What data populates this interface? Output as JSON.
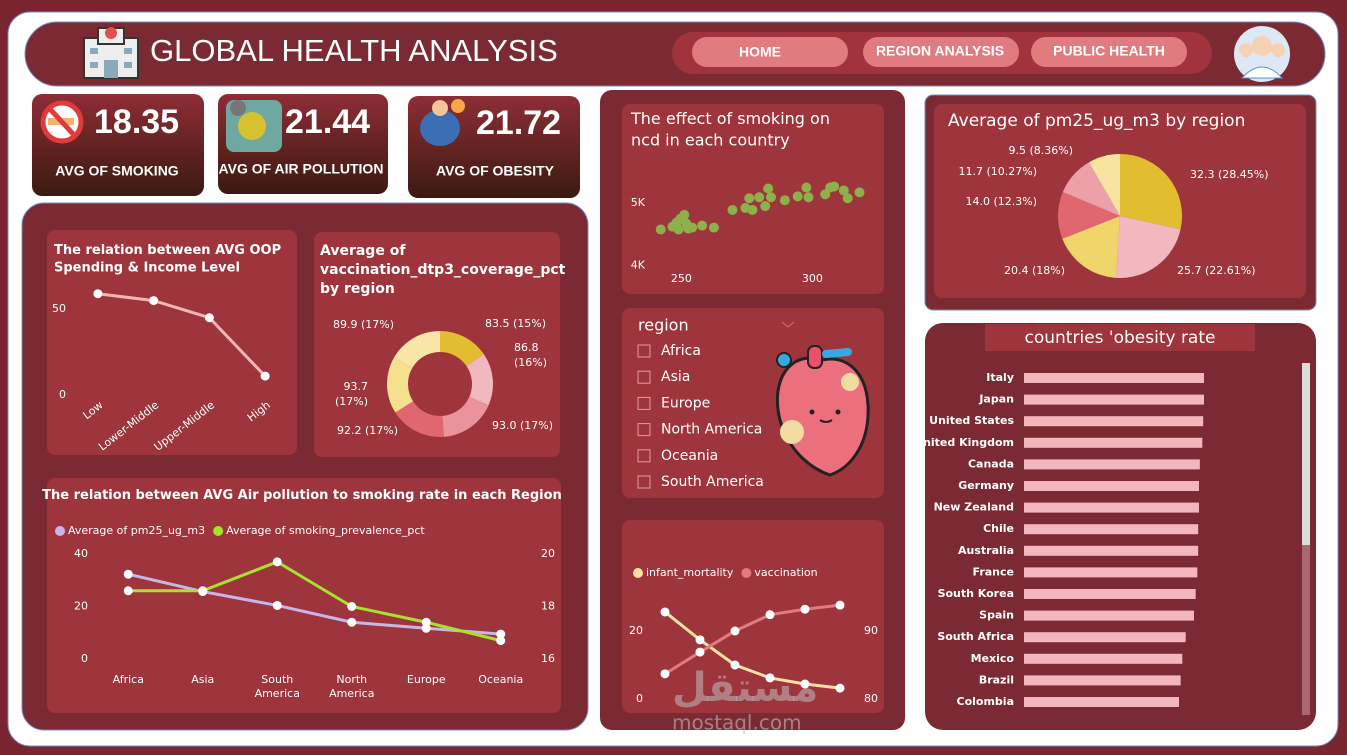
{
  "header": {
    "title": "GLOBAL HEALTH ANALYSIS",
    "nav": [
      "HOME",
      "REGION ANALYSIS",
      "PUBLIC HEALTH"
    ]
  },
  "kpis": [
    {
      "value": 18.35,
      "label": "AVG OF SMOKING"
    },
    {
      "value": 21.44,
      "label": "AVG OF AIR POLLUTION"
    },
    {
      "value": 21.72,
      "label": "AVG OF OBESITY"
    }
  ],
  "slicer": {
    "title": "region",
    "options": [
      "Africa",
      "Asia",
      "Europe",
      "North America",
      "Oceania",
      "South America"
    ]
  },
  "watermark": {
    "arabic": "مستقل",
    "latin": "mostaql.com"
  },
  "chart_data": [
    {
      "type": "line",
      "title": "The relation between AVG OOP Spending & Income Level",
      "categories": [
        "Low",
        "Lower-Middle",
        "Upper-Middle",
        "High"
      ],
      "series": [
        {
          "color": "#f4b6b6",
          "values": [
            59,
            55,
            45,
            11
          ]
        }
      ],
      "ylim": [
        0,
        60
      ],
      "yticks": [
        0,
        50
      ]
    },
    {
      "type": "donut",
      "title": "Average of vaccination_dtp3_coverage_pct by region",
      "values": [
        83.5,
        86.8,
        93.0,
        92.2,
        93.7,
        89.9
      ],
      "value_labels": [
        "83.5 (15%)",
        "86.8 (16%)",
        "93.0 (17%)",
        "92.2 (17%)",
        "93.7 (17%)",
        "89.9 (17%)"
      ],
      "colors": [
        "#e2bd30",
        "#f2b8bf",
        "#ea939b",
        "#e06670",
        "#f5e08e",
        "#f8e6a6"
      ]
    },
    {
      "type": "line",
      "title": "The relation between AVG Air pollution to smoking rate in each Region",
      "categories": [
        "Africa",
        "Asia",
        "South America",
        "North America",
        "Europe",
        "Oceania"
      ],
      "series": [
        {
          "name": "Average of pm25_ug_m3",
          "color": "#c9b6e8",
          "values": [
            32.3,
            25.7,
            20.4,
            14.0,
            11.7,
            9.5
          ]
        },
        {
          "name": "Average of smoking_prevalence_pct",
          "color": "#a6e22e",
          "axis": "y2",
          "values": [
            18.6,
            18.6,
            19.7,
            18.0,
            17.4,
            16.7
          ]
        }
      ],
      "ylim": [
        0,
        40
      ],
      "yticks": [
        0,
        20,
        40
      ],
      "y2lim": [
        16,
        20
      ],
      "y2ticks": [
        16,
        18,
        20
      ],
      "legend": "top-left"
    },
    {
      "type": "scatter",
      "title": "The effect of smoking on ncd in each country",
      "x": [
        242.1,
        246.6,
        248.1,
        249.6,
        251.1,
        251.9,
        252.6,
        248.9,
        254.1,
        257.9,
        262.4,
        269.5,
        274.4,
        275.9,
        277.1,
        279.7,
        282.0,
        283.1,
        284.2,
        289.5,
        294.4,
        297.7,
        298.5,
        304.9,
        306.8,
        308.3,
        312.0,
        313.5,
        318.0
      ],
      "values": [
        4578,
        4625,
        4688,
        4750,
        4812,
        4672,
        4594,
        4578,
        4609,
        4641,
        4609,
        4891,
        4922,
        5078,
        4891,
        5094,
        4953,
        5234,
        5094,
        5047,
        5109,
        5250,
        5094,
        5141,
        5250,
        5266,
        5203,
        5078,
        5172
      ],
      "color": "#8db04a",
      "xlim": [
        238,
        322
      ],
      "ylim": [
        3850,
        5450
      ],
      "xticks": [
        250,
        300
      ],
      "yticks": [
        {
          "value": 4000,
          "label": "4K"
        },
        {
          "value": 5000,
          "label": "5K"
        }
      ]
    },
    {
      "type": "line",
      "categories": [
        null,
        null,
        null,
        null,
        null,
        null
      ],
      "series": [
        {
          "name": "infant_mortality",
          "color": "#f7e3a0",
          "values": [
            25.6,
            17.4,
            10.0,
            6.2,
            4.4,
            3.2
          ]
        },
        {
          "name": "vaccination",
          "color": "#e07b80",
          "axis": "y2",
          "values": [
            83.7,
            86.9,
            90.0,
            92.4,
            93.2,
            93.8
          ]
        }
      ],
      "ylim": [
        0,
        30
      ],
      "yticks": [
        0,
        20
      ],
      "y2lim": [
        80,
        95
      ],
      "y2ticks": [
        80,
        90
      ],
      "legend": "top-left"
    },
    {
      "type": "pie",
      "title": "Average of pm25_ug_m3 by region",
      "values": [
        32.3,
        25.7,
        20.4,
        14.0,
        11.7,
        9.5
      ],
      "value_labels": [
        "32.3 (28.45%)",
        "25.7 (22.61%)",
        "20.4 (18%)",
        "14.0 (12.3%)",
        "11.7 (10.27%)",
        "9.5 (8.36%)"
      ],
      "colors": [
        "#e2bd30",
        "#f2b8bf",
        "#f0d56a",
        "#e06670",
        "#eea0a8",
        "#f7e3a0"
      ]
    },
    {
      "type": "hbar",
      "title": "countries 'obesity rate",
      "categories": [
        "Italy",
        "Japan",
        "United States",
        "United Kingdom",
        "Canada",
        "Germany",
        "New Zealand",
        "Chile",
        "Australia",
        "France",
        "South Korea",
        "Spain",
        "South Africa",
        "Mexico",
        "Brazil",
        "Colombia"
      ],
      "values": [
        21.6,
        21.6,
        21.5,
        21.4,
        21.1,
        21.0,
        21.0,
        20.9,
        20.9,
        20.8,
        20.6,
        20.4,
        19.4,
        19.0,
        18.8,
        18.6
      ],
      "color": "#f4b6bd",
      "xlim": [
        0,
        30
      ]
    }
  ]
}
